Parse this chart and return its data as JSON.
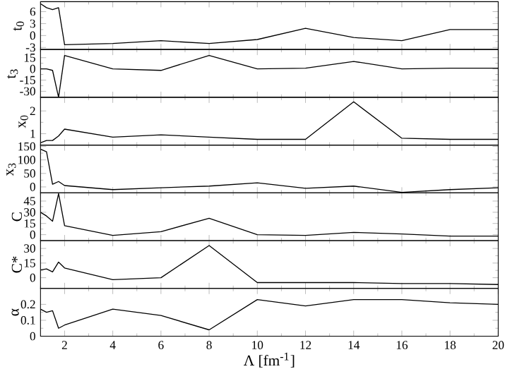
{
  "chart_data": [
    {
      "type": "line",
      "ylabel": "t$_{0}$",
      "x": [
        1,
        1.25,
        1.5,
        1.75,
        2,
        4,
        6,
        8,
        10,
        12,
        14,
        16,
        18,
        20
      ],
      "series": [
        {
          "color": "#000000",
          "values": [
            8,
            7,
            6.5,
            7,
            -2.3,
            -2,
            -1.3,
            -2,
            -1,
            1.8,
            -0.5,
            -1.3,
            1.5,
            1.5
          ]
        }
      ],
      "xlim": [
        1,
        20
      ],
      "ylim": [
        -3.5,
        8.5
      ],
      "yticks": [
        -3,
        0,
        3,
        6
      ],
      "tick_labels": "y"
    },
    {
      "type": "line",
      "ylabel": "t$_{3}$",
      "x": [
        1,
        1.25,
        1.5,
        1.75,
        2,
        4,
        6,
        8,
        10,
        12,
        14,
        16,
        18,
        20
      ],
      "series": [
        {
          "color": "#000000",
          "values": [
            0,
            0,
            -2,
            -38,
            18,
            0,
            -2,
            18,
            0,
            1,
            10,
            0,
            1,
            1
          ]
        }
      ],
      "xlim": [
        1,
        20
      ],
      "ylim": [
        -38,
        26
      ],
      "yticks": [
        -30,
        -15,
        0,
        15
      ],
      "tick_labels": "y"
    },
    {
      "type": "line",
      "ylabel": "x$_{0}$",
      "x": [
        1,
        1.25,
        1.5,
        1.75,
        2,
        4,
        6,
        8,
        10,
        12,
        14,
        16,
        18,
        20
      ],
      "series": [
        {
          "color": "#000000",
          "values": [
            0.6,
            0.7,
            0.7,
            0.9,
            1.2,
            0.85,
            0.95,
            0.85,
            0.75,
            0.75,
            2.4,
            0.8,
            0.75,
            0.75
          ]
        }
      ],
      "xlim": [
        1,
        20
      ],
      "ylim": [
        0.5,
        2.6
      ],
      "yticks": [
        1,
        2
      ],
      "tick_labels": "y"
    },
    {
      "type": "line",
      "ylabel": "x$_{3}$",
      "x": [
        1,
        1.25,
        1.5,
        1.75,
        2,
        4,
        6,
        8,
        10,
        12,
        14,
        16,
        18,
        20
      ],
      "series": [
        {
          "color": "#000000",
          "values": [
            140,
            130,
            10,
            20,
            5,
            -10,
            -3,
            3,
            15,
            -5,
            3,
            -20,
            -10,
            -3
          ]
        }
      ],
      "xlim": [
        1,
        20
      ],
      "ylim": [
        -22,
        155
      ],
      "yticks": [
        0,
        50,
        100,
        150
      ],
      "tick_labels": "y"
    },
    {
      "type": "line",
      "ylabel": "C",
      "x": [
        1,
        1.25,
        1.5,
        1.75,
        2,
        4,
        6,
        8,
        10,
        12,
        14,
        16,
        18,
        20
      ],
      "series": [
        {
          "color": "#000000",
          "values": [
            30,
            25,
            18,
            55,
            12,
            -1,
            4,
            22,
            0,
            -1,
            3,
            1,
            -2,
            -2
          ]
        }
      ],
      "xlim": [
        1,
        20
      ],
      "ylim": [
        -8,
        56
      ],
      "yticks": [
        0,
        15,
        30,
        45
      ],
      "tick_labels": "y"
    },
    {
      "type": "line",
      "ylabel": "C*",
      "x": [
        1,
        1.25,
        1.5,
        1.75,
        2,
        4,
        6,
        8,
        10,
        12,
        14,
        16,
        18,
        20
      ],
      "series": [
        {
          "color": "#000000",
          "values": [
            8,
            9,
            6,
            16,
            10,
            -2,
            0,
            33,
            -5,
            -5,
            -5,
            -6,
            -6,
            -7
          ]
        }
      ],
      "xlim": [
        1,
        20
      ],
      "ylim": [
        -11,
        38
      ],
      "yticks": [
        0,
        15,
        30
      ],
      "tick_labels": "y"
    },
    {
      "type": "line",
      "ylabel": "α",
      "xlabel": "Λ [fm$^{-1}$]",
      "x": [
        1,
        1.25,
        1.5,
        1.75,
        2,
        4,
        6,
        8,
        10,
        12,
        14,
        16,
        18,
        20
      ],
      "series": [
        {
          "color": "#000000",
          "values": [
            0.17,
            0.15,
            0.16,
            0.05,
            0.07,
            0.17,
            0.13,
            0.04,
            0.23,
            0.19,
            0.23,
            0.23,
            0.21,
            0.2
          ]
        }
      ],
      "xlim": [
        1,
        20
      ],
      "ylim": [
        0,
        0.3
      ],
      "xticks": [
        2,
        4,
        6,
        8,
        10,
        12,
        14,
        16,
        18,
        20
      ],
      "yticks": [
        0,
        0.1,
        0.2
      ]
    }
  ]
}
